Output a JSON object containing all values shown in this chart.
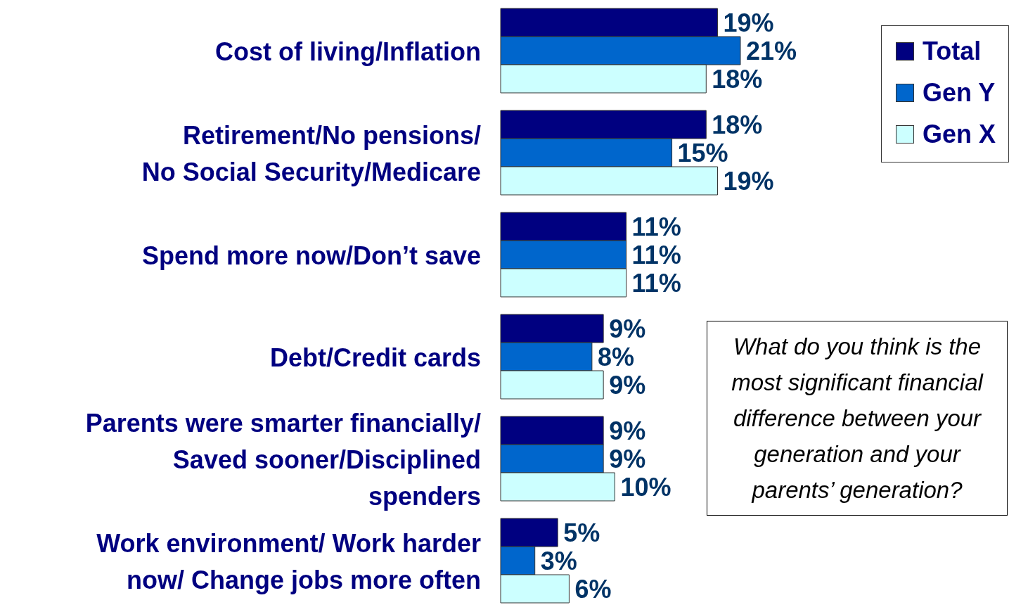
{
  "chart_data": {
    "type": "bar",
    "orientation": "horizontal",
    "categories": [
      "Cost of living/Inflation",
      "Retirement/No pensions/\nNo Social Security/Medicare",
      "Spend more now/Don’t save",
      "Debt/Credit cards",
      "Parents were smarter financially/\nSaved sooner/Disciplined\nspenders",
      "Work environment/ Work harder\nnow/ Change jobs more often"
    ],
    "series": [
      {
        "name": "Total",
        "color": "#000080",
        "values": [
          19,
          18,
          11,
          9,
          9,
          5
        ],
        "value_labels": [
          "19%",
          "18%",
          "11%",
          "9%",
          "9%",
          "5%"
        ]
      },
      {
        "name": "Gen Y",
        "color": "#0066cc",
        "values": [
          21,
          15,
          11,
          8,
          9,
          3
        ],
        "value_labels": [
          "21%",
          "15%",
          "11%",
          "8%",
          "9%",
          "3%"
        ]
      },
      {
        "name": "Gen X",
        "color": "#ccffff",
        "values": [
          18,
          19,
          11,
          9,
          10,
          6
        ],
        "value_labels": [
          "18%",
          "19%",
          "11%",
          "9%",
          "10%",
          "6%"
        ]
      }
    ],
    "legend": "top right",
    "annotations": [
      "What do you think is the most significant financial difference between your generation and your parents’ generation?"
    ]
  }
}
